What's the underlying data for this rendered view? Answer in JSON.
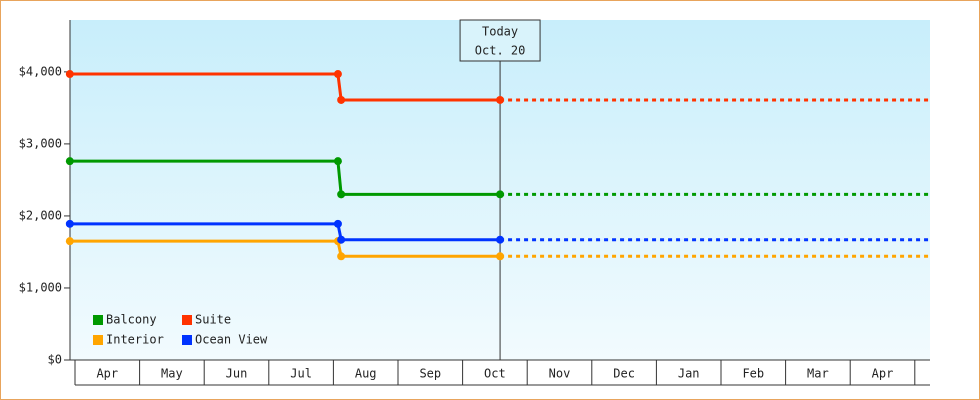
{
  "chart_data": {
    "type": "line",
    "categories": [
      "Apr",
      "May",
      "Jun",
      "Jul",
      "Aug",
      "Sep",
      "Oct",
      "Nov",
      "Dec",
      "Jan",
      "Feb",
      "Mar",
      "Apr"
    ],
    "x": [
      -0.08,
      4.07,
      4.12,
      6.58
    ],
    "xlim": [
      -0.08,
      13.24
    ],
    "ylim": [
      0,
      4720
    ],
    "yticks": [
      {
        "value": 0,
        "label": "$0"
      },
      {
        "value": 1000,
        "label": "$1,000"
      },
      {
        "value": 2000,
        "label": "$2,000"
      },
      {
        "value": 3000,
        "label": "$3,000"
      },
      {
        "value": 4000,
        "label": "$4,000"
      }
    ],
    "series": [
      {
        "name": "Balcony",
        "color": "#009900",
        "values": [
          2760,
          2760,
          2300,
          2300
        ]
      },
      {
        "name": "Suite",
        "color": "#ff3300",
        "values": [
          3970,
          3970,
          3610,
          3610
        ]
      },
      {
        "name": "Interior",
        "color": "#ffa500",
        "values": [
          1650,
          1650,
          1440,
          1440
        ]
      },
      {
        "name": "Ocean View",
        "color": "#0033ff",
        "values": [
          1890,
          1890,
          1670,
          1670
        ]
      }
    ],
    "annotation": {
      "lines": [
        "Today",
        "Oct. 20"
      ],
      "x": 6.58
    },
    "legend": "lower-left"
  }
}
